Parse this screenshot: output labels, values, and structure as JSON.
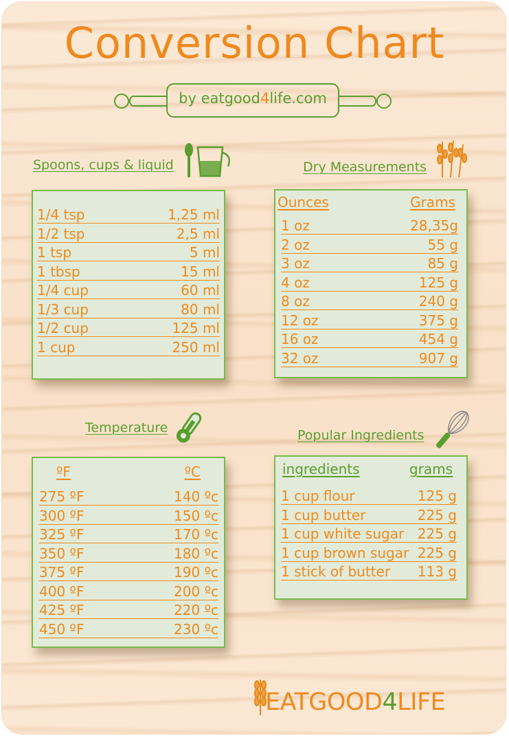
{
  "title": "Conversion Chart",
  "byline": {
    "prefix": "by eatgood",
    "accent": "4",
    "suffix": "life.com"
  },
  "spoons": {
    "heading": "Spoons, cups & liquid",
    "rows": [
      {
        "unit": "1/4 tsp",
        "value": "1,25 ml"
      },
      {
        "unit": "1/2 tsp",
        "value": "2,5 ml"
      },
      {
        "unit": "1 tsp",
        "value": "5 ml"
      },
      {
        "unit": "1 tbsp",
        "value": "15 ml"
      },
      {
        "unit": "1/4 cup",
        "value": "60 ml"
      },
      {
        "unit": "1/3 cup",
        "value": "80 ml"
      },
      {
        "unit": "1/2 cup",
        "value": "125 ml"
      },
      {
        "unit": "1 cup",
        "value": "250 ml"
      }
    ]
  },
  "dry": {
    "heading": "Dry Measurements",
    "col1": "Ounces",
    "col2": "Grams",
    "rows": [
      {
        "unit": "1 oz",
        "value": "28,35g"
      },
      {
        "unit": "2 oz",
        "value": "55 g"
      },
      {
        "unit": "3 oz",
        "value": "85 g"
      },
      {
        "unit": "4 oz",
        "value": "125 g"
      },
      {
        "unit": "8 oz",
        "value": "240 g"
      },
      {
        "unit": "12 oz",
        "value": "375 g"
      },
      {
        "unit": "16 oz",
        "value": "454 g"
      },
      {
        "unit": "32 oz",
        "value": "907 g"
      }
    ]
  },
  "temperature": {
    "heading": "Temperature",
    "col1": "ºF",
    "col2": "ºC",
    "rows": [
      {
        "unit": "275 ºF",
        "value": "140 ºc"
      },
      {
        "unit": "300 ºF",
        "value": "150 ºc"
      },
      {
        "unit": "325 ºF",
        "value": "170 ºc"
      },
      {
        "unit": "350 ºF",
        "value": "180 ºc"
      },
      {
        "unit": "375 ºF",
        "value": "190 ºc"
      },
      {
        "unit": "400 ºF",
        "value": "200 ºc"
      },
      {
        "unit": "425 ºF",
        "value": "220 ºc"
      },
      {
        "unit": "450 ºF",
        "value": "230 ºc"
      }
    ]
  },
  "ingredients": {
    "heading": "Popular Ingredients",
    "col1": "ingredients",
    "col2": "grams",
    "rows": [
      {
        "unit": "1 cup flour",
        "value": "125 g"
      },
      {
        "unit": "1 cup butter",
        "value": "225 g"
      },
      {
        "unit": "1 cup white sugar",
        "value": "225 g"
      },
      {
        "unit": "1 cup brown sugar",
        "value": "225 g"
      },
      {
        "unit": "1 stick of butter",
        "value": "113 g"
      }
    ]
  },
  "logo": {
    "part1": "EATGOOD",
    "part2": "4",
    "part3": "LIFE"
  },
  "colors": {
    "orange": "#f0891e",
    "green": "#5a9e2f",
    "card": "#e2ebd9",
    "wood": "#fbe9d6"
  }
}
